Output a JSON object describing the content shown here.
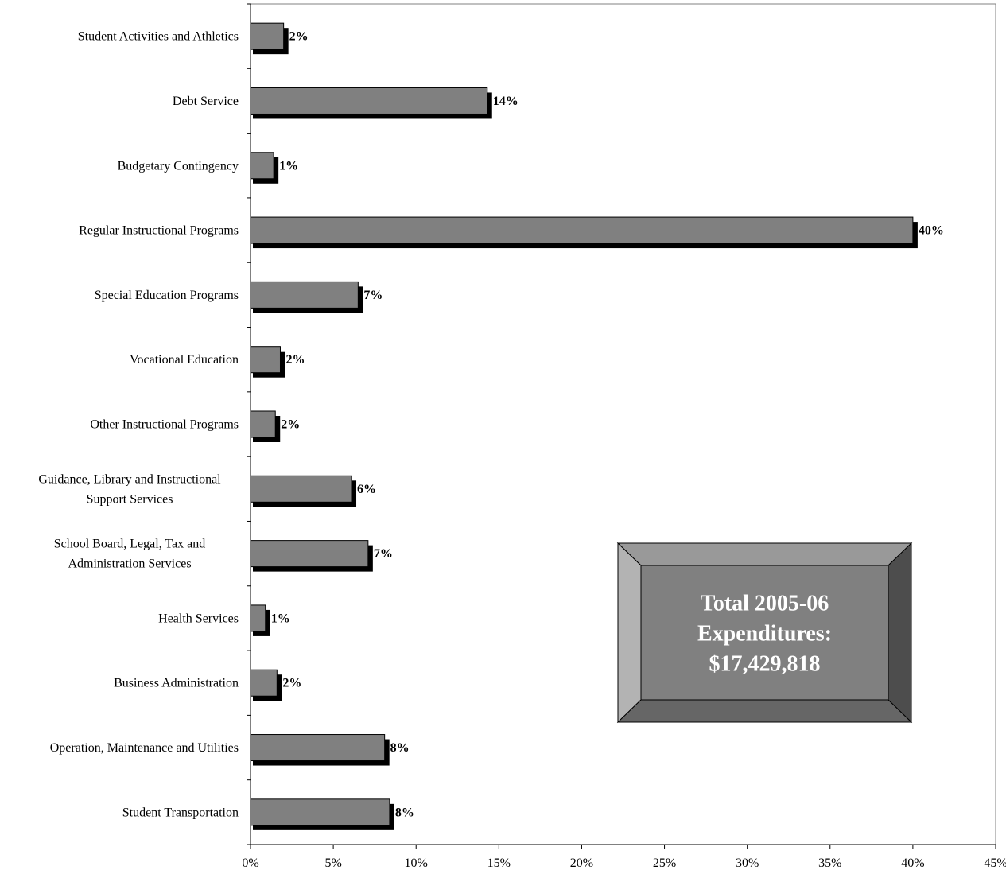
{
  "chart_data": {
    "type": "bar",
    "orientation": "horizontal",
    "categories": [
      "Student Activities and Athletics",
      "Debt Service",
      "Budgetary Contingency",
      "Regular Instructional  Programs",
      "Special Education Programs",
      "Vocational Education",
      "Other Instructional Programs",
      "Guidance, Library and Instructional Support Services",
      "School Board, Legal, Tax and Administration Services",
      "Health Services",
      "Business Administration",
      "Operation, Maintenance and Utilities",
      "Student Transportation"
    ],
    "category_lines": [
      [
        "Student Activities and Athletics"
      ],
      [
        "Debt Service"
      ],
      [
        "Budgetary Contingency"
      ],
      [
        "Regular Instructional  Programs"
      ],
      [
        "Special Education Programs"
      ],
      [
        "Vocational Education"
      ],
      [
        "Other Instructional Programs"
      ],
      [
        "Guidance, Library and Instructional",
        "Support Services"
      ],
      [
        "School Board, Legal, Tax and",
        "Administration Services"
      ],
      [
        "Health Services"
      ],
      [
        "Business Administration"
      ],
      [
        "Operation, Maintenance and Utilities"
      ],
      [
        "Student Transportation"
      ]
    ],
    "values": [
      2.0,
      14.3,
      1.4,
      40.0,
      6.5,
      1.8,
      1.5,
      6.1,
      7.1,
      0.9,
      1.6,
      8.1,
      8.4
    ],
    "data_labels": [
      "2%",
      "14%",
      "1%",
      "40%",
      "7%",
      "2%",
      "2%",
      "6%",
      "7%",
      "1%",
      "2%",
      "8%",
      "8%"
    ],
    "x_ticks": [
      "0%",
      "5%",
      "10%",
      "15%",
      "20%",
      "25%",
      "30%",
      "35%",
      "40%",
      "45%"
    ],
    "xlim": [
      0,
      45
    ],
    "grid": false,
    "colors": {
      "bar": "#808080",
      "shadow": "#000000"
    }
  },
  "annotation": {
    "lines": [
      "Total 2005-06",
      "Expenditures:",
      "$17,429,818"
    ],
    "colors": {
      "face": "#808080",
      "top": "#999999",
      "left": "#b3b3b3",
      "right": "#4d4d4d",
      "bottom": "#666666"
    }
  }
}
